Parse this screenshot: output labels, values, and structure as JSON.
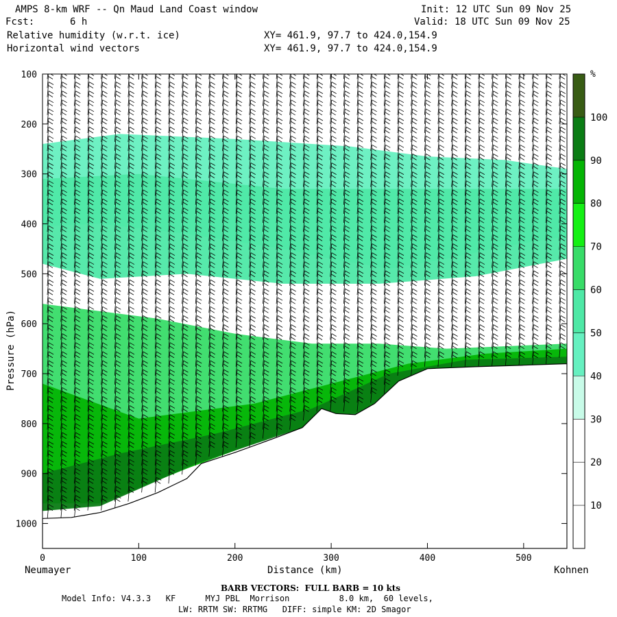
{
  "header": {
    "title": "AMPS 8-km WRF -- Qn Maud Land Coast window",
    "fcst_label": "Fcst:",
    "fcst_value": "6 h",
    "field1": "Relative humidity (w.r.t. ice)",
    "field2": "Horizontal wind vectors",
    "xy1": "XY= 461.9, 97.7 to 424.0,154.9",
    "xy2": "XY= 461.9, 97.7 to 424.0,154.9",
    "init": "Init: 12 UTC Sun 09 Nov 25",
    "valid": "Valid: 18 UTC Sun 09 Nov 25"
  },
  "footer": {
    "barb_note": "BARB VECTORS:  FULL BARB = 10 kts",
    "model_line1": "Model Info: V4.3.3   KF      MYJ PBL  Morrison          8.0 km,  60 levels,",
    "model_line2": "LW: RRTM SW: RRTMG   DIFF: simple KM: 2D Smagor"
  },
  "colors": {
    "rh_bands": [
      "#ffffff",
      "#ffffff",
      "#ffffff",
      "#c8fbe8",
      "#66f0c0",
      "#4ee8a6",
      "#38dc68",
      "#14f014",
      "#04b404",
      "#0a7c14",
      "#385c14"
    ],
    "terrain": "#ffffff",
    "barb": "#000000"
  },
  "chart_data": {
    "type": "contour-cross-section",
    "ylabel": "Pressure (hPa)",
    "xlabel": "Distance (km)",
    "x_start_label": "Neumayer",
    "x_end_label": "Kohnen",
    "x_ticks": [
      0,
      100,
      200,
      300,
      400,
      500
    ],
    "y_ticks": [
      100,
      200,
      300,
      400,
      500,
      600,
      700,
      800,
      900,
      1000
    ],
    "xlim": [
      0,
      545
    ],
    "ylim_hpa": [
      1050,
      100
    ],
    "y_scale": "linear (inverted)",
    "colorbar": {
      "unit": "%",
      "ticks": [
        10,
        20,
        30,
        40,
        50,
        60,
        70,
        80,
        90,
        100
      ],
      "range": [
        0,
        110
      ],
      "levels": [
        0,
        10,
        20,
        30,
        40,
        50,
        60,
        70,
        80,
        90,
        100,
        110
      ]
    },
    "terrain_surface_hpa": [
      {
        "x": 0,
        "p": 990
      },
      {
        "x": 30,
        "p": 988
      },
      {
        "x": 60,
        "p": 978
      },
      {
        "x": 90,
        "p": 960
      },
      {
        "x": 120,
        "p": 938
      },
      {
        "x": 150,
        "p": 910
      },
      {
        "x": 165,
        "p": 880
      },
      {
        "x": 200,
        "p": 858
      },
      {
        "x": 240,
        "p": 830
      },
      {
        "x": 270,
        "p": 808
      },
      {
        "x": 290,
        "p": 770
      },
      {
        "x": 305,
        "p": 780
      },
      {
        "x": 325,
        "p": 782
      },
      {
        "x": 345,
        "p": 760
      },
      {
        "x": 370,
        "p": 715
      },
      {
        "x": 400,
        "p": 690
      },
      {
        "x": 450,
        "p": 686
      },
      {
        "x": 500,
        "p": 683
      },
      {
        "x": 545,
        "p": 680
      }
    ],
    "rh_contour_bands_pct": [
      {
        "level": 40,
        "path": [
          [
            0,
            240
          ],
          [
            80,
            220
          ],
          [
            200,
            230
          ],
          [
            320,
            245
          ],
          [
            400,
            265
          ],
          [
            480,
            272
          ],
          [
            545,
            290
          ],
          [
            545,
            425
          ],
          [
            480,
            445
          ],
          [
            420,
            470
          ],
          [
            360,
            490
          ],
          [
            300,
            470
          ],
          [
            250,
            450
          ],
          [
            150,
            420
          ],
          [
            60,
            400
          ],
          [
            0,
            405
          ]
        ]
      },
      {
        "level": 50,
        "path": [
          [
            0,
            310
          ],
          [
            100,
            300
          ],
          [
            250,
            330
          ],
          [
            400,
            330
          ],
          [
            545,
            330
          ],
          [
            545,
            470
          ],
          [
            450,
            505
          ],
          [
            350,
            520
          ],
          [
            250,
            520
          ],
          [
            150,
            500
          ],
          [
            60,
            510
          ],
          [
            0,
            480
          ]
        ]
      },
      {
        "level": 60,
        "path": [
          [
            0,
            560
          ],
          [
            120,
            590
          ],
          [
            200,
            620
          ],
          [
            280,
            640
          ],
          [
            350,
            640
          ],
          [
            420,
            650
          ],
          [
            545,
            640
          ],
          [
            545,
            690
          ],
          [
            420,
            700
          ],
          [
            340,
            760
          ],
          [
            250,
            800
          ],
          [
            160,
            860
          ],
          [
            60,
            900
          ],
          [
            0,
            900
          ]
        ]
      },
      {
        "level": 80,
        "path": [
          [
            0,
            720
          ],
          [
            100,
            790
          ],
          [
            220,
            760
          ],
          [
            300,
            720
          ],
          [
            380,
            680
          ],
          [
            460,
            660
          ],
          [
            545,
            650
          ],
          [
            545,
            680
          ],
          [
            420,
            690
          ],
          [
            340,
            770
          ],
          [
            240,
            825
          ],
          [
            150,
            890
          ],
          [
            60,
            960
          ],
          [
            0,
            960
          ]
        ]
      },
      {
        "level": 90,
        "path": [
          [
            0,
            900
          ],
          [
            80,
            860
          ],
          [
            180,
            820
          ],
          [
            280,
            770
          ],
          [
            360,
            700
          ],
          [
            440,
            672
          ],
          [
            545,
            666
          ],
          [
            545,
            682
          ],
          [
            440,
            688
          ],
          [
            350,
            770
          ],
          [
            260,
            815
          ],
          [
            160,
            880
          ],
          [
            60,
            965
          ],
          [
            0,
            975
          ]
        ]
      }
    ],
    "wind_barbs": "Black wind-barb field drawn on a regular grid over the section; full barb = 10 kts"
  }
}
